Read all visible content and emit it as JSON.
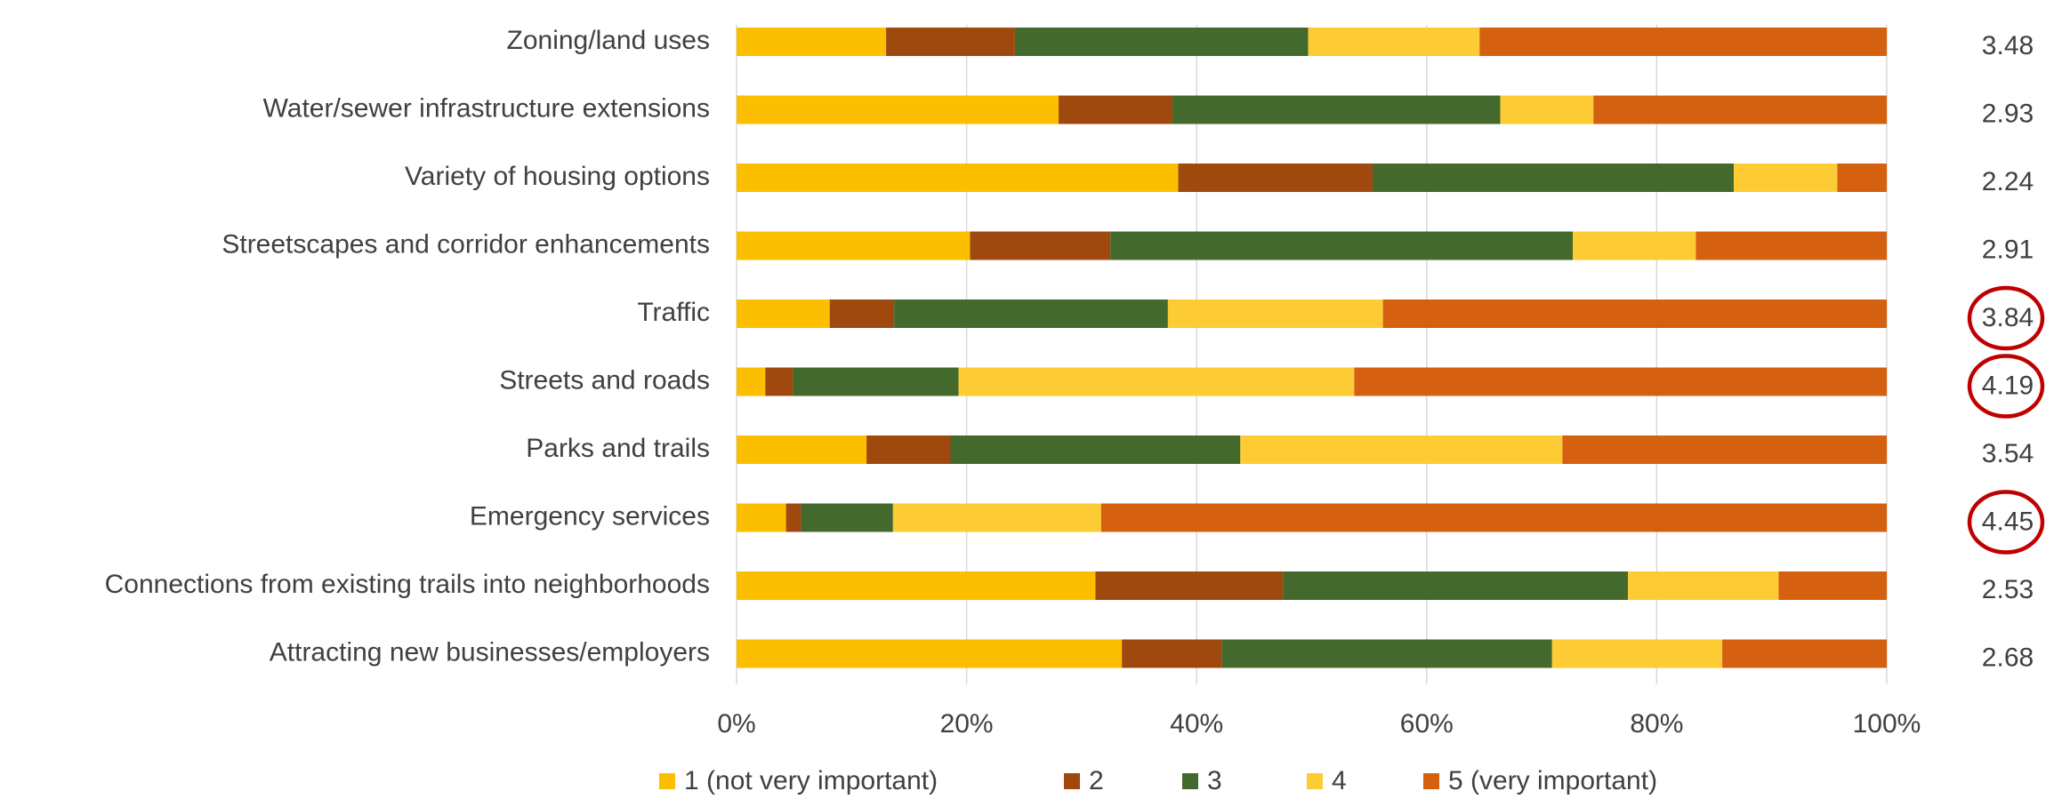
{
  "chart_data": {
    "type": "stacked-barh",
    "categories": [
      "Zoning/land uses",
      "Water/sewer infrastructure extensions",
      "Variety of housing options",
      "Streetscapes and corridor enhancements",
      "Traffic",
      "Streets and roads",
      "Parks and trails",
      "Emergency services",
      "Connections from existing trails into neighborhoods",
      "Attracting new businesses/employers"
    ],
    "series": [
      {
        "name": "1 (not very important)",
        "color": "#fbbf00",
        "values": [
          13.0,
          28.0,
          38.4,
          20.3,
          8.1,
          2.5,
          11.3,
          4.3,
          31.2,
          33.5
        ]
      },
      {
        "name": "2",
        "color": "#a0490f",
        "values": [
          11.2,
          9.9,
          16.9,
          12.2,
          5.6,
          2.4,
          7.3,
          1.3,
          16.3,
          8.7
        ]
      },
      {
        "name": "3",
        "color": "#436a2c",
        "values": [
          25.5,
          28.5,
          31.4,
          40.2,
          23.8,
          14.4,
          25.2,
          8.0,
          30.0,
          28.7
        ]
      },
      {
        "name": "4",
        "color": "#fdcb33",
        "values": [
          14.9,
          8.1,
          9.0,
          10.7,
          18.7,
          34.4,
          28.0,
          18.1,
          13.1,
          14.8
        ]
      },
      {
        "name": "5 (very important)",
        "color": "#d46010",
        "values": [
          35.4,
          25.5,
          4.3,
          16.6,
          43.8,
          46.3,
          28.2,
          68.3,
          9.4,
          14.3
        ]
      }
    ],
    "scores": [
      3.48,
      2.93,
      2.24,
      2.91,
      3.84,
      4.19,
      3.54,
      4.45,
      2.53,
      2.68
    ],
    "circled": [
      false,
      false,
      false,
      false,
      true,
      true,
      false,
      true,
      false,
      false
    ],
    "circle_color": "#c00000",
    "xlim": [
      0,
      100
    ],
    "xticks": [
      {
        "value": 0,
        "label": "0%"
      },
      {
        "value": 20,
        "label": "20%"
      },
      {
        "value": 40,
        "label": "40%"
      },
      {
        "value": 60,
        "label": "60%"
      },
      {
        "value": 80,
        "label": "80%"
      },
      {
        "value": 100,
        "label": "100%"
      }
    ],
    "grid": true,
    "legend": "bottom"
  }
}
